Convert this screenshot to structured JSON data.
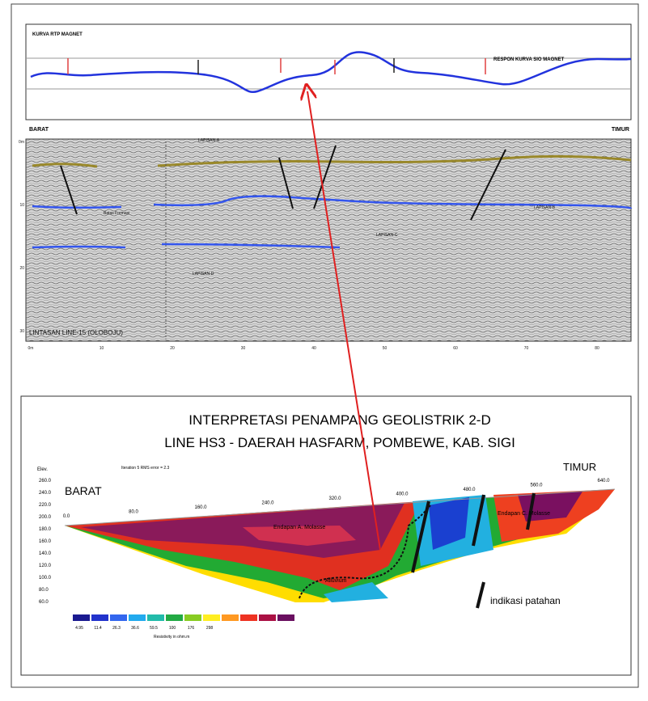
{
  "magnetic": {
    "title": "KURVA RTP MAGNET",
    "response": "RESPON KURVA SIO MAGNET",
    "west": "BARAT",
    "east": "TIMUR"
  },
  "seismic": {
    "line": "LINTASAN LINE-15 (OLOBOJU)",
    "layers": [
      "LAPISAN-A",
      "LAPISAN-B",
      "LAPISAN-C",
      "LAPISAN-D"
    ],
    "structure": "Batas Formasi",
    "xticks": [
      "0m",
      "10",
      "20",
      "30",
      "40",
      "50",
      "60",
      "70",
      "80"
    ],
    "yticks": [
      "0m",
      "10",
      "20",
      "30"
    ]
  },
  "geoelectric": {
    "title": "INTERPRETASI PENAMPANG GEOLISTRIK 2-D",
    "subtitle": "LINE HS3 - DAERAH HASFARM, POMBEWE, KAB. SIGI",
    "iteration": "Iteration 5 RMS error = 2.3",
    "elev_label": "Elev.",
    "west": "BARAT",
    "east": "TIMUR",
    "elevations": [
      "260.0",
      "240.0",
      "220.0",
      "200.0",
      "180.0",
      "160.0",
      "140.0",
      "120.0",
      "100.0",
      "80.0",
      "60.0"
    ],
    "distances": [
      "0.0",
      "80.0",
      "160.0",
      "240.0",
      "320.0",
      "400.0",
      "480.0",
      "560.0",
      "640.0"
    ],
    "units": [
      "Endapan A. Molasse",
      "Alluvium",
      "Endapan C. Molasse"
    ],
    "fault_legend": "indikasi patahan",
    "scale_values": [
      "4.95",
      "11.4",
      "26.3",
      "36.6",
      "59.5",
      "100",
      "176",
      "298"
    ],
    "scale_caption": "Resistivity in ohm.m"
  }
}
